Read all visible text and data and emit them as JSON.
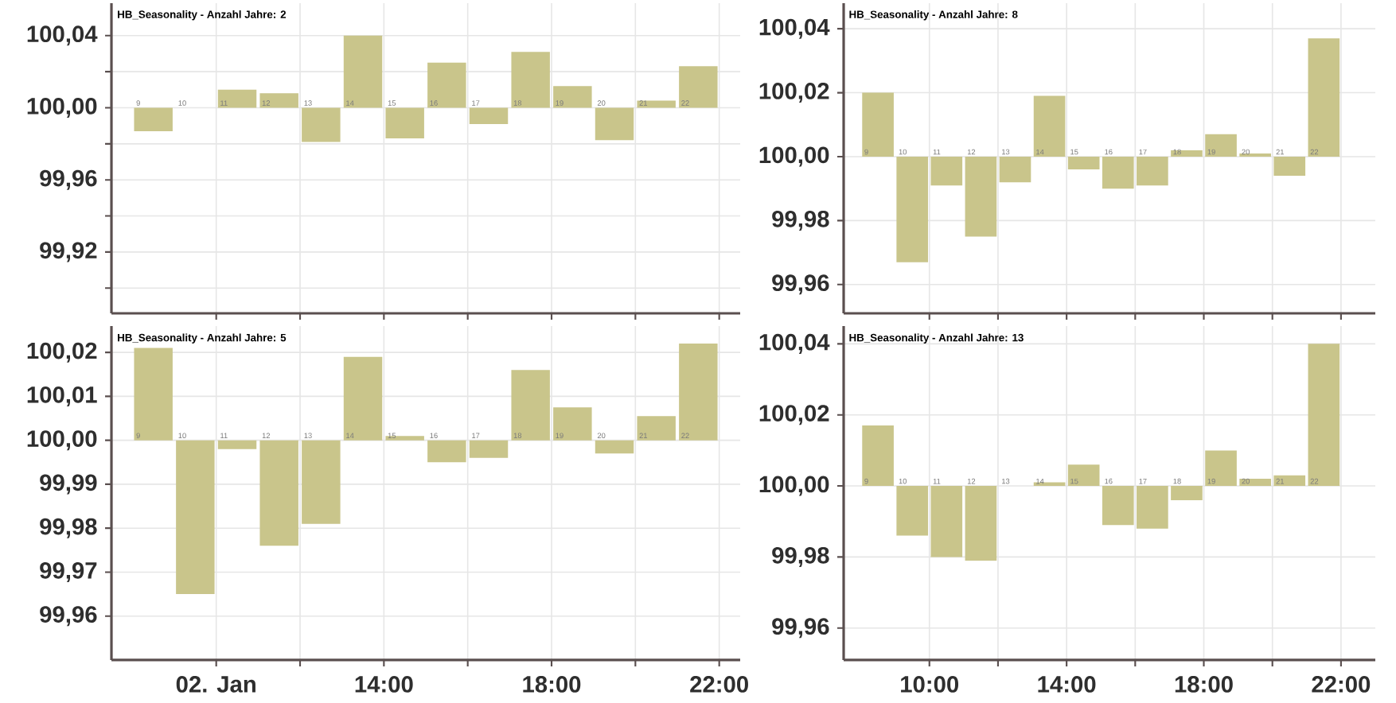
{
  "chart_data": [
    {
      "type": "bar",
      "title": "HB_Seasonality - Anzahl Jahre: 2",
      "color": "#c9c58b",
      "grid": true,
      "tick_labels": "y",
      "x": [
        8.5,
        9.5,
        10.5,
        11.5,
        12.5,
        13.5,
        14.5,
        15.5,
        16.5,
        17.5,
        18.5,
        19.5,
        20.5,
        21.5
      ],
      "base": [
        100,
        null,
        100,
        100,
        100,
        100,
        100,
        100,
        100,
        100,
        100,
        100,
        100,
        100
      ],
      "values": [
        -0.013,
        null,
        0.01,
        0.008,
        -0.019,
        0.04,
        -0.017,
        0.025,
        -0.009,
        0.031,
        0.012,
        -0.018,
        0.004,
        0.023
      ],
      "xlim": [
        7.5,
        22.5
      ],
      "ylim": [
        99.886,
        100.058
      ],
      "xticks": [
        {
          "value": 10,
          "label": null
        },
        {
          "value": 12,
          "label": null
        },
        {
          "value": 14,
          "label": null
        },
        {
          "value": 16,
          "label": null
        },
        {
          "value": 18,
          "label": null
        },
        {
          "value": 20,
          "label": null
        },
        {
          "value": 22,
          "label": null
        }
      ],
      "yticks": [
        {
          "value": 99.9,
          "label": null
        },
        {
          "value": 99.92,
          "label": "99,92"
        },
        {
          "value": 99.94,
          "label": null
        },
        {
          "value": 99.96,
          "label": "99,96"
        },
        {
          "value": 99.98,
          "label": null
        },
        {
          "value": 100.0,
          "label": "100,00"
        },
        {
          "value": 100.02,
          "label": null
        },
        {
          "value": 100.04,
          "label": "100,04"
        }
      ],
      "annotations": [
        "9",
        "10",
        "11",
        "12",
        "13",
        "14",
        "15",
        "16",
        "17",
        "18",
        "19",
        "20",
        "21",
        "22"
      ]
    },
    {
      "type": "bar",
      "title": "HB_Seasonality - Anzahl Jahre: 8",
      "color": "#c9c58b",
      "grid": true,
      "tick_labels": "y",
      "x": [
        8.5,
        9.5,
        10.5,
        11.5,
        12.5,
        13.5,
        14.5,
        15.5,
        16.5,
        17.5,
        18.5,
        19.5,
        20.5,
        21.5
      ],
      "base": [
        100,
        100,
        100,
        100,
        100,
        100,
        100,
        100,
        100,
        100,
        100,
        100,
        100,
        100
      ],
      "values": [
        0.02,
        -0.033,
        -0.009,
        -0.025,
        -0.008,
        0.019,
        -0.004,
        -0.01,
        -0.009,
        0.002,
        0.007,
        0.001,
        -0.006,
        0.037
      ],
      "xlim": [
        7.5,
        23
      ],
      "ylim": [
        99.951,
        100.048
      ],
      "xticks": [
        {
          "value": 10,
          "label": null
        },
        {
          "value": 12,
          "label": null
        },
        {
          "value": 14,
          "label": null
        },
        {
          "value": 16,
          "label": null
        },
        {
          "value": 18,
          "label": null
        },
        {
          "value": 20,
          "label": null
        },
        {
          "value": 22,
          "label": null
        }
      ],
      "yticks": [
        {
          "value": 99.96,
          "label": "99,96"
        },
        {
          "value": 99.98,
          "label": "99,98"
        },
        {
          "value": 100.0,
          "label": "100,00"
        },
        {
          "value": 100.02,
          "label": "100,02"
        },
        {
          "value": 100.04,
          "label": "100,04"
        }
      ],
      "annotations": [
        "9",
        "10",
        "11",
        "12",
        "13",
        "14",
        "15",
        "16",
        "17",
        "18",
        "19",
        "20",
        "21",
        "22"
      ]
    },
    {
      "type": "bar",
      "title": "HB_Seasonality - Anzahl Jahre: 5",
      "color": "#c9c58b",
      "grid": true,
      "x": [
        8.5,
        9.5,
        10.5,
        11.5,
        12.5,
        13.5,
        14.5,
        15.5,
        16.5,
        17.5,
        18.5,
        19.5,
        20.5,
        21.5
      ],
      "base": [
        100,
        100,
        100,
        100,
        100,
        100,
        100,
        100,
        100,
        100,
        100,
        100,
        100,
        100
      ],
      "values": [
        0.021,
        -0.035,
        -0.002,
        -0.024,
        -0.019,
        0.019,
        0.001,
        -0.005,
        -0.004,
        0.016,
        0.0075,
        -0.003,
        0.0055,
        0.022
      ],
      "xlim": [
        7.5,
        22.5
      ],
      "ylim": [
        99.95,
        100.026
      ],
      "xticks": [
        {
          "value": 10,
          "label": "02. Jan"
        },
        {
          "value": 12,
          "label": null
        },
        {
          "value": 14,
          "label": "14:00"
        },
        {
          "value": 16,
          "label": null
        },
        {
          "value": 18,
          "label": "18:00"
        },
        {
          "value": 20,
          "label": null
        },
        {
          "value": 22,
          "label": "22:00"
        }
      ],
      "yticks": [
        {
          "value": 99.96,
          "label": "99,96"
        },
        {
          "value": 99.97,
          "label": "99,97"
        },
        {
          "value": 99.98,
          "label": "99,98"
        },
        {
          "value": 99.99,
          "label": "99,99"
        },
        {
          "value": 100.0,
          "label": "100,00"
        },
        {
          "value": 100.01,
          "label": "100,01"
        },
        {
          "value": 100.02,
          "label": "100,02"
        }
      ],
      "annotations": [
        "9",
        "10",
        "11",
        "12",
        "13",
        "14",
        "15",
        "16",
        "17",
        "18",
        "19",
        "20",
        "21",
        "22"
      ]
    },
    {
      "type": "bar",
      "title": "HB_Seasonality - Anzahl Jahre: 13",
      "color": "#c9c58b",
      "grid": true,
      "x": [
        8.5,
        9.5,
        10.5,
        11.5,
        12.5,
        13.5,
        14.5,
        15.5,
        16.5,
        17.5,
        18.5,
        19.5,
        20.5,
        21.5
      ],
      "base": [
        100,
        100,
        100,
        100,
        null,
        100,
        100,
        100,
        100,
        100,
        100,
        100,
        100,
        100
      ],
      "values": [
        0.017,
        -0.014,
        -0.02,
        -0.021,
        null,
        0.001,
        0.006,
        -0.011,
        -0.012,
        -0.004,
        0.01,
        0.002,
        0.003,
        0.04
      ],
      "xlim": [
        7.5,
        23
      ],
      "ylim": [
        99.951,
        100.045
      ],
      "xticks": [
        {
          "value": 10,
          "label": "10:00"
        },
        {
          "value": 12,
          "label": null
        },
        {
          "value": 14,
          "label": "14:00"
        },
        {
          "value": 16,
          "label": null
        },
        {
          "value": 18,
          "label": "18:00"
        },
        {
          "value": 20,
          "label": null
        },
        {
          "value": 22,
          "label": "22:00"
        }
      ],
      "yticks": [
        {
          "value": 99.96,
          "label": "99,96"
        },
        {
          "value": 99.98,
          "label": "99,98"
        },
        {
          "value": 100.0,
          "label": "100,00"
        },
        {
          "value": 100.02,
          "label": "100,02"
        },
        {
          "value": 100.04,
          "label": "100,04"
        }
      ],
      "annotations": [
        "9",
        "10",
        "11",
        "12",
        "13",
        "14",
        "15",
        "16",
        "17",
        "18",
        "19",
        "20",
        "21",
        "22"
      ]
    }
  ]
}
